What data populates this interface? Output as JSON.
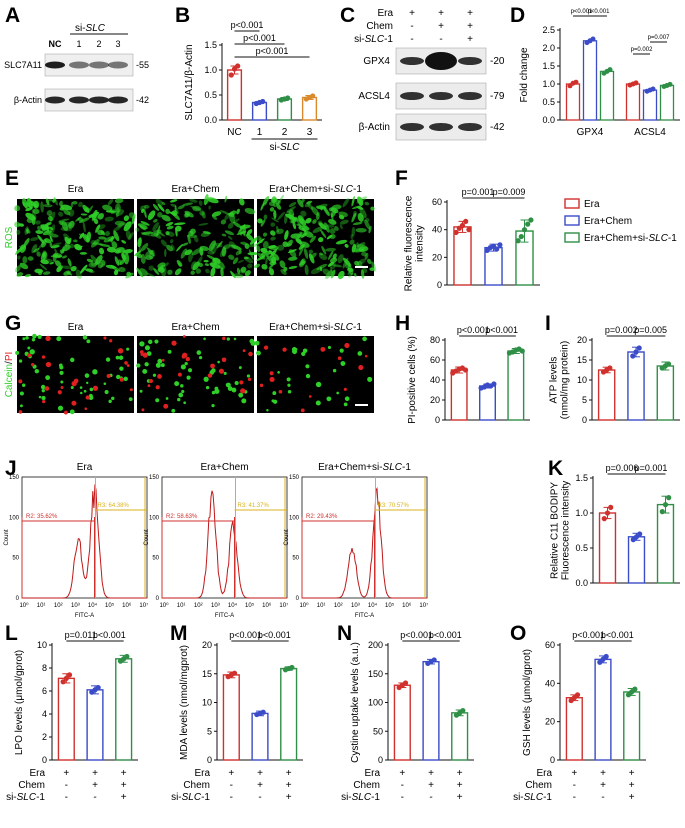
{
  "colors": {
    "red": "#d0312d",
    "blue": "#3b4cc8",
    "green": "#2f8f46",
    "orange": "#d98a2a",
    "gold": "#d9b21e",
    "micro": "#2fd028",
    "pi_red": "#e02020"
  },
  "panels": {
    "A": {
      "letter": "A",
      "group": "si-SLC",
      "lanes": [
        "NC",
        "1",
        "2",
        "3"
      ],
      "bands": [
        "SLC7A11",
        "β-Actin"
      ],
      "sizes": [
        "-55",
        "-42"
      ]
    },
    "C": {
      "letter": "C",
      "rows": [
        {
          "label": "Era",
          "signs": [
            "+",
            "+",
            "+"
          ]
        },
        {
          "label": "Chem",
          "signs": [
            "-",
            "+",
            "+"
          ]
        },
        {
          "label": "si-SLC-1",
          "signs": [
            "-",
            "-",
            "+"
          ]
        }
      ],
      "bands": [
        "GPX4",
        "ACSL4",
        "β-Actin"
      ],
      "sizes": [
        "-20",
        "-79",
        "-42"
      ]
    },
    "E": {
      "letter": "E",
      "side": "ROS",
      "titles": [
        "Era",
        "Era+Chem",
        "Era+Chem+si-SLC-1"
      ]
    },
    "G": {
      "letter": "G",
      "side_a": "Calcein",
      "side_b": "PI",
      "titles": [
        "Era",
        "Era+Chem",
        "Era+Chem+si-SLC-1"
      ]
    },
    "J": {
      "letter": "J",
      "titles": [
        "Era",
        "Era+Chem",
        "Era+Chem+si-SLC-1"
      ],
      "xlabel": "FITC-A",
      "ylabel": "Count",
      "r2": [
        "R2: 35.62%",
        "R2: 58.63%",
        "R2: 29.43%"
      ],
      "r3": [
        "R3: 64.38%",
        "R3: 41.37%",
        "R3: 70.57%"
      ]
    }
  },
  "legend_F": {
    "items": [
      "Era",
      "Era+Chem",
      "Era+Chem+si-SLC-1"
    ]
  },
  "chart_data": [
    {
      "id": "B",
      "letter": "B",
      "type": "bar",
      "categories": [
        "NC",
        "1",
        "2",
        "3"
      ],
      "group_label": "si-SLC",
      "ylabel": "SLC7A11/β-Actin",
      "ylim": [
        0,
        1.5
      ],
      "yticks": [
        0,
        0.5,
        1.0,
        1.5
      ],
      "values": [
        1.0,
        0.35,
        0.42,
        0.45
      ],
      "err": [
        0.08,
        0.02,
        0.03,
        0.04
      ],
      "points": [
        [
          0.9,
          1.02,
          1.08
        ],
        [
          0.33,
          0.35,
          0.37
        ],
        [
          0.4,
          0.42,
          0.44
        ],
        [
          0.42,
          0.45,
          0.48
        ]
      ],
      "colors": [
        "red",
        "blue",
        "green",
        "orange"
      ],
      "sig": [
        {
          "from": 0,
          "to": 1,
          "label": "p<0.001"
        },
        {
          "from": 0,
          "to": 2,
          "label": "p<0.001"
        },
        {
          "from": 0,
          "to": 3,
          "label": "p<0.001"
        }
      ]
    },
    {
      "id": "D",
      "letter": "D",
      "type": "bar",
      "categories": [
        "GPX4",
        "ACSL4"
      ],
      "series": [
        {
          "name": "Era",
          "values": [
            1.0,
            1.0
          ],
          "points": [
            [
              0.95,
              1.02,
              1.05
            ],
            [
              0.97,
              1.0,
              1.03
            ]
          ]
        },
        {
          "name": "Era+Chem",
          "values": [
            2.2,
            0.83
          ],
          "points": [
            [
              2.15,
              2.2,
              2.25
            ],
            [
              0.8,
              0.83,
              0.86
            ]
          ]
        },
        {
          "name": "Era+Chem+si-SLC-1",
          "values": [
            1.35,
            0.96
          ],
          "points": [
            [
              1.3,
              1.35,
              1.4
            ],
            [
              0.93,
              0.96,
              0.99
            ]
          ]
        }
      ],
      "ylabel": "Fold change",
      "ylim": [
        0,
        2.5
      ],
      "yticks": [
        0.0,
        0.5,
        1.0,
        1.5,
        2.0,
        2.5
      ],
      "sig": [
        {
          "label": "p<0.001"
        },
        {
          "label": "p<0.001"
        },
        {
          "label": "p=0.002"
        },
        {
          "label": "p=0.007"
        }
      ]
    },
    {
      "id": "F",
      "letter": "F",
      "type": "bar",
      "ylabel": [
        "Relative fluorescence",
        "intensity"
      ],
      "ylim": [
        0,
        60
      ],
      "yticks": [
        0,
        20,
        40,
        60
      ],
      "values": [
        42,
        27,
        39
      ],
      "err": [
        4,
        2.5,
        8
      ],
      "points": [
        [
          38,
          41,
          43,
          46,
          40
        ],
        [
          25,
          27,
          28,
          26,
          29
        ],
        [
          32,
          35,
          40,
          44,
          47
        ]
      ],
      "sig": [
        {
          "from": 0,
          "to": 1,
          "label": "p=0.001"
        },
        {
          "from": 1,
          "to": 2,
          "label": "p=0.009"
        }
      ]
    },
    {
      "id": "H",
      "letter": "H",
      "type": "bar",
      "ylabel": "PI-positive cells (%)",
      "ylim": [
        0,
        80
      ],
      "yticks": [
        0,
        20,
        40,
        60,
        80
      ],
      "values": [
        50,
        34,
        69
      ],
      "err": [
        3,
        2,
        2.5
      ],
      "points": [
        [
          47,
          49,
          51,
          52,
          50
        ],
        [
          32,
          33,
          35,
          34,
          36
        ],
        [
          67,
          68,
          70,
          71,
          69
        ]
      ],
      "sig": [
        {
          "from": 0,
          "to": 1,
          "label": "p<0.001"
        },
        {
          "from": 1,
          "to": 2,
          "label": "p<0.001"
        }
      ]
    },
    {
      "id": "I",
      "letter": "I",
      "type": "bar",
      "ylabel": [
        "ATP levels",
        "(nmol/mg protein)"
      ],
      "ylim": [
        0,
        20
      ],
      "yticks": [
        0,
        5,
        10,
        15,
        20
      ],
      "values": [
        12.5,
        17,
        13.5
      ],
      "err": [
        0.7,
        1.2,
        1.0
      ],
      "points": [
        [
          12,
          12.5,
          13
        ],
        [
          16,
          17,
          18
        ],
        [
          13,
          13.5,
          14
        ]
      ],
      "sig": [
        {
          "from": 0,
          "to": 1,
          "label": "p=0.002"
        },
        {
          "from": 1,
          "to": 2,
          "label": "p=0.005"
        }
      ]
    },
    {
      "id": "K",
      "letter": "K",
      "type": "bar",
      "ylabel": [
        "Relative C11 BODIPY",
        "Fluorescence intensity"
      ],
      "ylim": [
        0,
        1.5
      ],
      "yticks": [
        0.0,
        0.5,
        1.0,
        1.5
      ],
      "values": [
        1.0,
        0.66,
        1.12
      ],
      "err": [
        0.08,
        0.05,
        0.12
      ],
      "points": [
        [
          0.92,
          1.0,
          1.08
        ],
        [
          0.62,
          0.66,
          0.7
        ],
        [
          1.02,
          1.12,
          1.22
        ]
      ],
      "sig": [
        {
          "from": 0,
          "to": 1,
          "label": "p=0.006"
        },
        {
          "from": 1,
          "to": 2,
          "label": "p=0.001"
        }
      ]
    },
    {
      "id": "L",
      "letter": "L",
      "type": "bar",
      "ylabel": "LPO levels (μmol/gprot)",
      "ylim": [
        0,
        10
      ],
      "yticks": [
        0,
        2,
        4,
        6,
        8,
        10
      ],
      "values": [
        7.1,
        6.1,
        8.8
      ],
      "err": [
        0.4,
        0.35,
        0.3
      ],
      "points": [
        [
          6.8,
          7.1,
          7.4
        ],
        [
          5.9,
          6.1,
          6.3
        ],
        [
          8.6,
          8.8,
          9.0
        ]
      ],
      "sig": [
        {
          "from": 0,
          "to": 1,
          "label": "p=0.011"
        },
        {
          "from": 1,
          "to": 2,
          "label": "p<0.001"
        }
      ]
    },
    {
      "id": "M",
      "letter": "M",
      "type": "bar",
      "ylabel": "MDA levels (nmol/mgprot)",
      "ylim": [
        0,
        20
      ],
      "yticks": [
        0,
        5,
        10,
        15,
        20
      ],
      "values": [
        14.8,
        8.1,
        15.9
      ],
      "err": [
        0.5,
        0.4,
        0.3
      ],
      "points": [
        [
          14.5,
          14.8,
          15.1
        ],
        [
          7.9,
          8.1,
          8.3
        ],
        [
          15.7,
          15.9,
          16.1
        ]
      ],
      "sig": [
        {
          "from": 0,
          "to": 1,
          "label": "p<0.001"
        },
        {
          "from": 1,
          "to": 2,
          "label": "p<0.001"
        }
      ]
    },
    {
      "id": "N",
      "letter": "N",
      "type": "bar",
      "ylabel": "Cystine uptake levels (a.u.)",
      "ylim": [
        0,
        200
      ],
      "yticks": [
        0,
        50,
        100,
        150,
        200
      ],
      "values": [
        130,
        171,
        82
      ],
      "err": [
        4,
        4,
        5
      ],
      "points": [
        [
          126,
          130,
          134
        ],
        [
          168,
          171,
          174
        ],
        [
          78,
          82,
          86
        ]
      ],
      "sig": [
        {
          "from": 0,
          "to": 1,
          "label": "p<0.001"
        },
        {
          "from": 1,
          "to": 2,
          "label": "p<0.001"
        }
      ]
    },
    {
      "id": "O",
      "letter": "O",
      "type": "bar",
      "ylabel": "GSH levels (μmol/gprot)",
      "ylim": [
        0,
        60
      ],
      "yticks": [
        0,
        20,
        40,
        60
      ],
      "values": [
        32.5,
        52.5,
        35.5
      ],
      "err": [
        1.5,
        1.8,
        1.8
      ],
      "points": [
        [
          31,
          32.5,
          34
        ],
        [
          51,
          52.5,
          54
        ],
        [
          34,
          35.5,
          37
        ]
      ],
      "sig": [
        {
          "from": 0,
          "to": 1,
          "label": "p<0.001"
        },
        {
          "from": 1,
          "to": 2,
          "label": "p<0.001"
        }
      ]
    }
  ],
  "treatment_table": {
    "rows": [
      {
        "label": "Era",
        "signs": [
          "+",
          "+",
          "+"
        ]
      },
      {
        "label": "Chem",
        "signs": [
          "-",
          "+",
          "+"
        ]
      },
      {
        "label": "si-SLC-1",
        "signs": [
          "-",
          "-",
          "+"
        ]
      }
    ]
  }
}
